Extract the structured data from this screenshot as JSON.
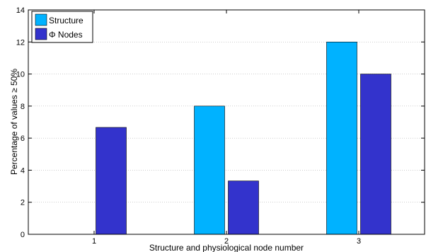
{
  "chart_data": {
    "type": "bar",
    "title": "",
    "xlabel": "Structure and physiological node number",
    "ylabel": "Percentage of values ≥ 50%",
    "categories": [
      "1",
      "2",
      "3"
    ],
    "series": [
      {
        "name": "Structure",
        "values": [
          0,
          8,
          12
        ],
        "color": "#00b2ff"
      },
      {
        "name": "Φ Nodes",
        "values": [
          6.67,
          3.33,
          10
        ],
        "color": "#3333cc"
      }
    ],
    "ylim": [
      0,
      14
    ],
    "yticks": [
      0,
      2,
      4,
      6,
      8,
      10,
      12,
      14
    ],
    "grid": "y-dotted",
    "legend_position": "top-left"
  }
}
